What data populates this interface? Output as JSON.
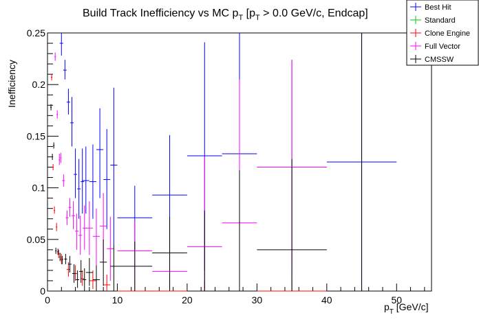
{
  "chart_data": {
    "type": "scatter",
    "title": "Build Track Inefficiency vs MC p",
    "title_parts": {
      "main": "Build Track Inefficiency vs MC p",
      "sub1": "T",
      "mid": " [p",
      "sub2": "T",
      "tail": " > 0.0 GeV/c, Endcap]"
    },
    "xlabel": {
      "main": "p",
      "sub": "T",
      "tail": " [GeV/c]"
    },
    "ylabel": "Inefficiency",
    "xlim": [
      0,
      55
    ],
    "ylim": [
      0,
      0.25
    ],
    "x_ticks": [
      0,
      10,
      20,
      30,
      40,
      50
    ],
    "x_tick_labels": [
      "0",
      "10",
      "20",
      "30",
      "40",
      "50"
    ],
    "y_ticks": [
      0,
      0.05,
      0.1,
      0.15,
      0.2,
      0.25
    ],
    "y_tick_labels": [
      "0",
      "0.05",
      "0.1",
      "0.15",
      "0.2",
      "0.25"
    ],
    "legend_position": "top-right",
    "grid": false,
    "series": [
      {
        "name": "Best Hit",
        "color": "#0000ff",
        "points": [
          {
            "x": 2.0,
            "xerr": 0.25,
            "y": 0.24,
            "ylo": 0.228,
            "yhi": 0.25
          },
          {
            "x": 2.5,
            "xerr": 0.25,
            "y": 0.214,
            "ylo": 0.205,
            "yhi": 0.224
          },
          {
            "x": 3.0,
            "xerr": 0.25,
            "y": 0.183,
            "ylo": 0.171,
            "yhi": 0.196
          },
          {
            "x": 3.5,
            "xerr": 0.25,
            "y": 0.163,
            "ylo": 0.14,
            "yhi": 0.188
          },
          {
            "x": 4.0,
            "xerr": 0.25,
            "y": 0.113,
            "ylo": 0.09,
            "yhi": 0.138
          },
          {
            "x": 4.5,
            "xerr": 0.25,
            "y": 0.099,
            "ylo": 0.07,
            "yhi": 0.128
          },
          {
            "x": 5.0,
            "xerr": 0.25,
            "y": 0.106,
            "ylo": 0.075,
            "yhi": 0.138
          },
          {
            "x": 5.5,
            "xerr": 0.5,
            "y": 0.107,
            "ylo": 0.075,
            "yhi": 0.14
          },
          {
            "x": 6.5,
            "xerr": 0.5,
            "y": 0.106,
            "ylo": 0.07,
            "yhi": 0.142
          },
          {
            "x": 7.5,
            "xerr": 0.5,
            "y": 0.137,
            "ylo": 0.09,
            "yhi": 0.177
          },
          {
            "x": 8.5,
            "xerr": 0.5,
            "y": 0.108,
            "ylo": 0.06,
            "yhi": 0.157
          },
          {
            "x": 9.5,
            "xerr": 0.5,
            "y": 0.122,
            "ylo": 0.045,
            "yhi": 0.197
          },
          {
            "x": 12.5,
            "xerr": 2.5,
            "y": 0.071,
            "ylo": 0.04,
            "yhi": 0.102
          },
          {
            "x": 17.5,
            "xerr": 2.5,
            "y": 0.093,
            "ylo": 0.035,
            "yhi": 0.151
          },
          {
            "x": 22.5,
            "xerr": 2.5,
            "y": 0.131,
            "ylo": 0.02,
            "yhi": 0.241
          },
          {
            "x": 27.5,
            "xerr": 2.5,
            "y": 0.133,
            "ylo": 0.017,
            "yhi": 0.25
          },
          {
            "x": 35.0,
            "xerr": 5.0,
            "y": 0.12,
            "ylo": 0.0,
            "yhi": 0.224
          },
          {
            "x": 45.0,
            "xerr": 5.0,
            "y": 0.125,
            "ylo": 0.0,
            "yhi": 0.25
          }
        ]
      },
      {
        "name": "Standard",
        "color": "#00c800",
        "points": []
      },
      {
        "name": "Clone Engine",
        "color": "#ff0000",
        "points": [
          {
            "x": 0.6,
            "xerr": 0.1,
            "y": 0.207,
            "ylo": 0.204,
            "yhi": 0.21
          },
          {
            "x": 0.8,
            "xerr": 0.1,
            "y": 0.12,
            "ylo": 0.117,
            "yhi": 0.123
          },
          {
            "x": 1.0,
            "xerr": 0.1,
            "y": 0.078,
            "ylo": 0.075,
            "yhi": 0.082
          },
          {
            "x": 1.3,
            "xerr": 0.1,
            "y": 0.062,
            "ylo": 0.058,
            "yhi": 0.066
          },
          {
            "x": 1.6,
            "xerr": 0.15,
            "y": 0.036,
            "ylo": 0.032,
            "yhi": 0.04
          },
          {
            "x": 2.0,
            "xerr": 0.25,
            "y": 0.031,
            "ylo": 0.026,
            "yhi": 0.036
          },
          {
            "x": 3.0,
            "xerr": 0.25,
            "y": 0.021,
            "ylo": 0.014,
            "yhi": 0.028
          },
          {
            "x": 4.0,
            "xerr": 0.25,
            "y": 0.017,
            "ylo": 0.01,
            "yhi": 0.025
          },
          {
            "x": 5.0,
            "xerr": 0.25,
            "y": 0.012,
            "ylo": 0.005,
            "yhi": 0.02
          },
          {
            "x": 6.5,
            "xerr": 0.5,
            "y": 0.01,
            "ylo": 0.002,
            "yhi": 0.02
          },
          {
            "x": 8.5,
            "xerr": 0.5,
            "y": 0.006,
            "ylo": 0.0,
            "yhi": 0.016
          },
          {
            "x": 12.5,
            "xerr": 2.5,
            "y": 0.0,
            "ylo": 0.0,
            "yhi": 0.01
          },
          {
            "x": 17.5,
            "xerr": 2.5,
            "y": 0.0,
            "ylo": 0.0,
            "yhi": 0.01
          },
          {
            "x": 22.5,
            "xerr": 2.5,
            "y": 0.0,
            "ylo": 0.0,
            "yhi": 0.01
          },
          {
            "x": 27.5,
            "xerr": 2.5,
            "y": 0.0,
            "ylo": 0.0,
            "yhi": 0.01
          },
          {
            "x": 35.0,
            "xerr": 5.0,
            "y": 0.0,
            "ylo": 0.0,
            "yhi": 0.01
          }
        ]
      },
      {
        "name": "Full Vector",
        "color": "#ff00ff",
        "points": [
          {
            "x": 1.1,
            "xerr": 0.1,
            "y": 0.227,
            "ylo": 0.223,
            "yhi": 0.231
          },
          {
            "x": 1.4,
            "xerr": 0.1,
            "y": 0.171,
            "ylo": 0.167,
            "yhi": 0.175
          },
          {
            "x": 1.7,
            "xerr": 0.1,
            "y": 0.127,
            "ylo": 0.122,
            "yhi": 0.133
          },
          {
            "x": 1.9,
            "xerr": 0.1,
            "y": 0.129,
            "ylo": 0.124,
            "yhi": 0.134
          },
          {
            "x": 2.3,
            "xerr": 0.2,
            "y": 0.107,
            "ylo": 0.101,
            "yhi": 0.113
          },
          {
            "x": 2.8,
            "xerr": 0.2,
            "y": 0.071,
            "ylo": 0.064,
            "yhi": 0.078
          },
          {
            "x": 3.2,
            "xerr": 0.2,
            "y": 0.081,
            "ylo": 0.072,
            "yhi": 0.09
          },
          {
            "x": 3.7,
            "xerr": 0.25,
            "y": 0.073,
            "ylo": 0.06,
            "yhi": 0.087
          },
          {
            "x": 4.2,
            "xerr": 0.25,
            "y": 0.058,
            "ylo": 0.04,
            "yhi": 0.075
          },
          {
            "x": 4.7,
            "xerr": 0.25,
            "y": 0.054,
            "ylo": 0.035,
            "yhi": 0.073
          },
          {
            "x": 5.3,
            "xerr": 0.25,
            "y": 0.061,
            "ylo": 0.04,
            "yhi": 0.083
          },
          {
            "x": 6.0,
            "xerr": 0.5,
            "y": 0.061,
            "ylo": 0.035,
            "yhi": 0.087
          },
          {
            "x": 7.0,
            "xerr": 0.5,
            "y": 0.053,
            "ylo": 0.025,
            "yhi": 0.08
          },
          {
            "x": 8.0,
            "xerr": 0.5,
            "y": 0.063,
            "ylo": 0.03,
            "yhi": 0.095
          },
          {
            "x": 9.0,
            "xerr": 0.5,
            "y": 0.041,
            "ylo": 0.01,
            "yhi": 0.072
          },
          {
            "x": 12.5,
            "xerr": 2.5,
            "y": 0.039,
            "ylo": 0.01,
            "yhi": 0.068
          },
          {
            "x": 17.5,
            "xerr": 2.5,
            "y": 0.019,
            "ylo": 0.0,
            "yhi": 0.04
          },
          {
            "x": 22.5,
            "xerr": 2.5,
            "y": 0.043,
            "ylo": 0.0,
            "yhi": 0.13
          },
          {
            "x": 27.5,
            "xerr": 2.5,
            "y": 0.066,
            "ylo": 0.0,
            "yhi": 0.205
          },
          {
            "x": 35.0,
            "xerr": 5.0,
            "y": 0.12,
            "ylo": 0.02,
            "yhi": 0.224
          }
        ]
      },
      {
        "name": "CMSSW",
        "color": "#000000",
        "points": [
          {
            "x": 0.5,
            "xerr": 0.1,
            "y": 0.178,
            "ylo": 0.175,
            "yhi": 0.181
          },
          {
            "x": 0.7,
            "xerr": 0.1,
            "y": 0.13,
            "ylo": 0.127,
            "yhi": 0.133
          },
          {
            "x": 0.9,
            "xerr": 0.1,
            "y": 0.141,
            "ylo": 0.138,
            "yhi": 0.144
          },
          {
            "x": 1.2,
            "xerr": 0.1,
            "y": 0.039,
            "ylo": 0.036,
            "yhi": 0.042
          },
          {
            "x": 1.5,
            "xerr": 0.1,
            "y": 0.038,
            "ylo": 0.035,
            "yhi": 0.041
          },
          {
            "x": 1.8,
            "xerr": 0.1,
            "y": 0.033,
            "ylo": 0.029,
            "yhi": 0.037
          },
          {
            "x": 2.1,
            "xerr": 0.1,
            "y": 0.03,
            "ylo": 0.026,
            "yhi": 0.034
          },
          {
            "x": 2.6,
            "xerr": 0.2,
            "y": 0.031,
            "ylo": 0.026,
            "yhi": 0.036
          },
          {
            "x": 3.2,
            "xerr": 0.25,
            "y": 0.026,
            "ylo": 0.018,
            "yhi": 0.034
          },
          {
            "x": 3.8,
            "xerr": 0.25,
            "y": 0.017,
            "ylo": 0.008,
            "yhi": 0.026
          },
          {
            "x": 4.3,
            "xerr": 0.25,
            "y": 0.011,
            "ylo": 0.003,
            "yhi": 0.02
          },
          {
            "x": 4.8,
            "xerr": 0.25,
            "y": 0.019,
            "ylo": 0.008,
            "yhi": 0.03
          },
          {
            "x": 5.3,
            "xerr": 0.25,
            "y": 0.011,
            "ylo": 0.0,
            "yhi": 0.022
          },
          {
            "x": 6.0,
            "xerr": 0.5,
            "y": 0.018,
            "ylo": 0.005,
            "yhi": 0.032
          },
          {
            "x": 7.0,
            "xerr": 0.5,
            "y": 0.011,
            "ylo": 0.0,
            "yhi": 0.025
          },
          {
            "x": 8.0,
            "xerr": 0.5,
            "y": 0.028,
            "ylo": 0.005,
            "yhi": 0.05
          },
          {
            "x": 9.5,
            "xerr": 0.5,
            "y": 0.024,
            "ylo": 0.0,
            "yhi": 0.045
          },
          {
            "x": 12.5,
            "xerr": 2.5,
            "y": 0.024,
            "ylo": 0.0,
            "yhi": 0.048
          },
          {
            "x": 17.5,
            "xerr": 2.5,
            "y": 0.037,
            "ylo": 0.0,
            "yhi": 0.072
          },
          {
            "x": 22.5,
            "xerr": 2.5,
            "y": 0.0,
            "ylo": 0.0,
            "yhi": 0.078
          },
          {
            "x": 27.5,
            "xerr": 2.5,
            "y": 0.0,
            "ylo": 0.0,
            "yhi": 0.117
          },
          {
            "x": 35.0,
            "xerr": 5.0,
            "y": 0.04,
            "ylo": 0.0,
            "yhi": 0.128
          },
          {
            "x": 45.0,
            "xerr": 5.0,
            "y": 0.0,
            "ylo": 0.0,
            "yhi": 0.25
          }
        ]
      }
    ]
  }
}
